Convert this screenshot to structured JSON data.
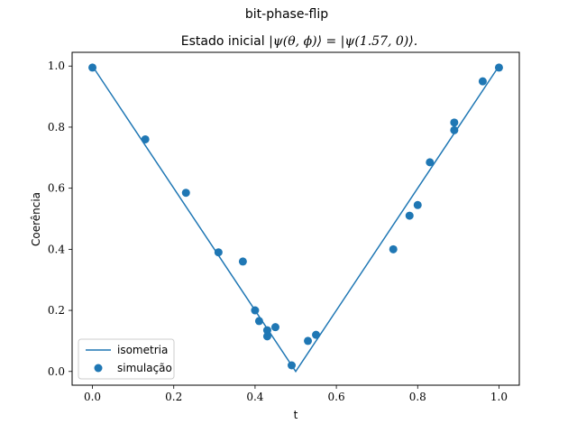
{
  "chart_data": {
    "type": "scatter",
    "title": "bit-phase-flip",
    "subtitle_prefix": "Estado inicial ",
    "subtitle_math": "|ψ(θ, ϕ)⟩ = |ψ(1.57, 0)⟩.",
    "xlabel": "t",
    "ylabel": "Coerência",
    "xlim": [
      -0.05,
      1.05
    ],
    "ylim": [
      -0.045,
      1.045
    ],
    "xticks": [
      0.0,
      0.2,
      0.4,
      0.6,
      0.8,
      1.0
    ],
    "xtick_labels": [
      "0.0",
      "0.2",
      "0.4",
      "0.6",
      "0.8",
      "1.0"
    ],
    "yticks": [
      0.0,
      0.2,
      0.4,
      0.6,
      0.8,
      1.0
    ],
    "ytick_labels": [
      "0.0",
      "0.2",
      "0.4",
      "0.6",
      "0.8",
      "1.0"
    ],
    "grid": false,
    "legend_position": "lower-left",
    "color": "#1f77b4",
    "series": [
      {
        "name": "isometria",
        "kind": "line",
        "x": [
          0.0,
          0.5,
          1.0
        ],
        "y": [
          1.0,
          0.0,
          1.0
        ]
      },
      {
        "name": "simulação",
        "kind": "scatter",
        "x": [
          0.0,
          0.13,
          0.23,
          0.31,
          0.37,
          0.4,
          0.41,
          0.43,
          0.43,
          0.45,
          0.49,
          0.53,
          0.55,
          0.74,
          0.78,
          0.8,
          0.83,
          0.89,
          0.89,
          0.96,
          1.0
        ],
        "y": [
          0.995,
          0.76,
          0.585,
          0.39,
          0.36,
          0.2,
          0.165,
          0.135,
          0.115,
          0.145,
          0.02,
          0.1,
          0.12,
          0.4,
          0.51,
          0.545,
          0.685,
          0.79,
          0.815,
          0.95,
          0.995
        ]
      }
    ]
  }
}
